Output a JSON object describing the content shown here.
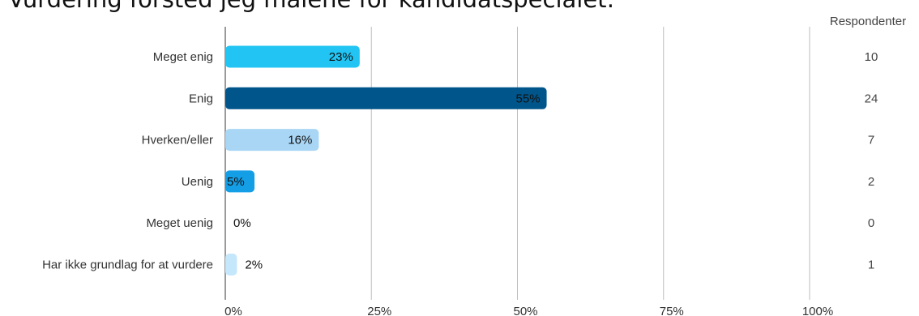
{
  "title": "Vurdering forsted jeg målene for kandidatspecialet:",
  "chart_data": {
    "type": "bar",
    "orientation": "horizontal",
    "categories": [
      "Meget enig",
      "Enig",
      "Hverken/eller",
      "Uenig",
      "Meget uenig",
      "Har ikke grundlag for at vurdere"
    ],
    "values": [
      23,
      55,
      16,
      5,
      0,
      2
    ],
    "value_labels": [
      "23%",
      "55%",
      "16%",
      "5%",
      "0%",
      "2%"
    ],
    "bar_colors": [
      "#21c4f3",
      "#00558a",
      "#a9d6f5",
      "#149ee6",
      "#08367d",
      "#c5e7fb"
    ],
    "respondents_header": "Respondenter",
    "respondents": [
      "10",
      "24",
      "7",
      "2",
      "0",
      "1"
    ],
    "xlim": [
      0,
      100
    ],
    "x_ticks": [
      "0%",
      "25%",
      "50%",
      "75%",
      "100%"
    ],
    "grid": true
  }
}
